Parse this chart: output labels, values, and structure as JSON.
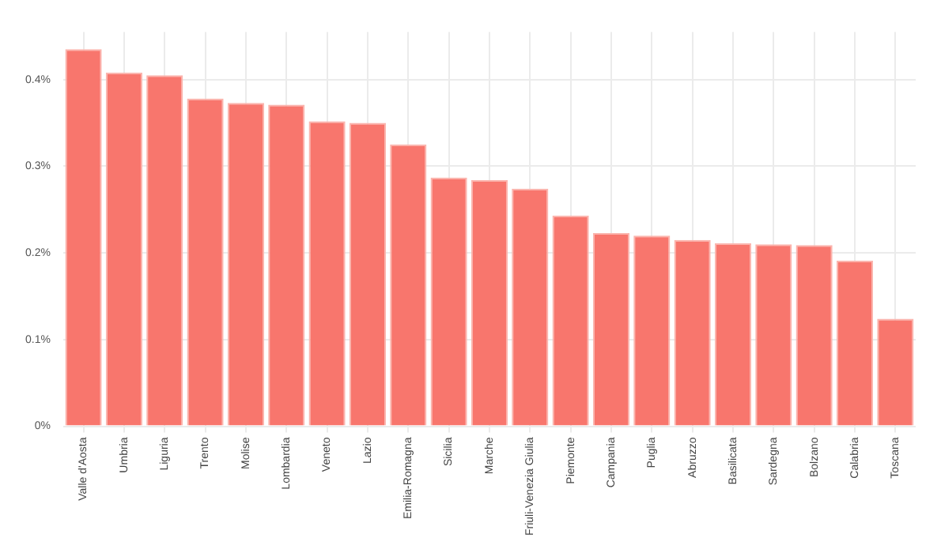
{
  "chart_data": {
    "type": "bar",
    "categories": [
      "Valle d'Aosta",
      "Umbria",
      "Liguria",
      "Trento",
      "Molise",
      "Lombardia",
      "Veneto",
      "Lazio",
      "Emilia-Romagna",
      "Sicilia",
      "Marche",
      "Friuli-Venezia Giulia",
      "Piemonte",
      "Campania",
      "Puglia",
      "Abruzzo",
      "Basilicata",
      "Sardegna",
      "Bolzano",
      "Calabria",
      "Toscana"
    ],
    "values": [
      0.435,
      0.408,
      0.405,
      0.378,
      0.373,
      0.371,
      0.352,
      0.35,
      0.325,
      0.287,
      0.284,
      0.274,
      0.243,
      0.223,
      0.22,
      0.215,
      0.211,
      0.21,
      0.209,
      0.191,
      0.124
    ],
    "color": "#f8766d",
    "ylim": [
      0,
      0.455
    ],
    "yticks": [
      {
        "value": 0,
        "label": "0%"
      },
      {
        "value": 0.1,
        "label": "0.1%"
      },
      {
        "value": 0.2,
        "label": "0.2%"
      },
      {
        "value": 0.3,
        "label": "0.3%"
      },
      {
        "value": 0.4,
        "label": "0.4%"
      }
    ],
    "grid": true
  }
}
